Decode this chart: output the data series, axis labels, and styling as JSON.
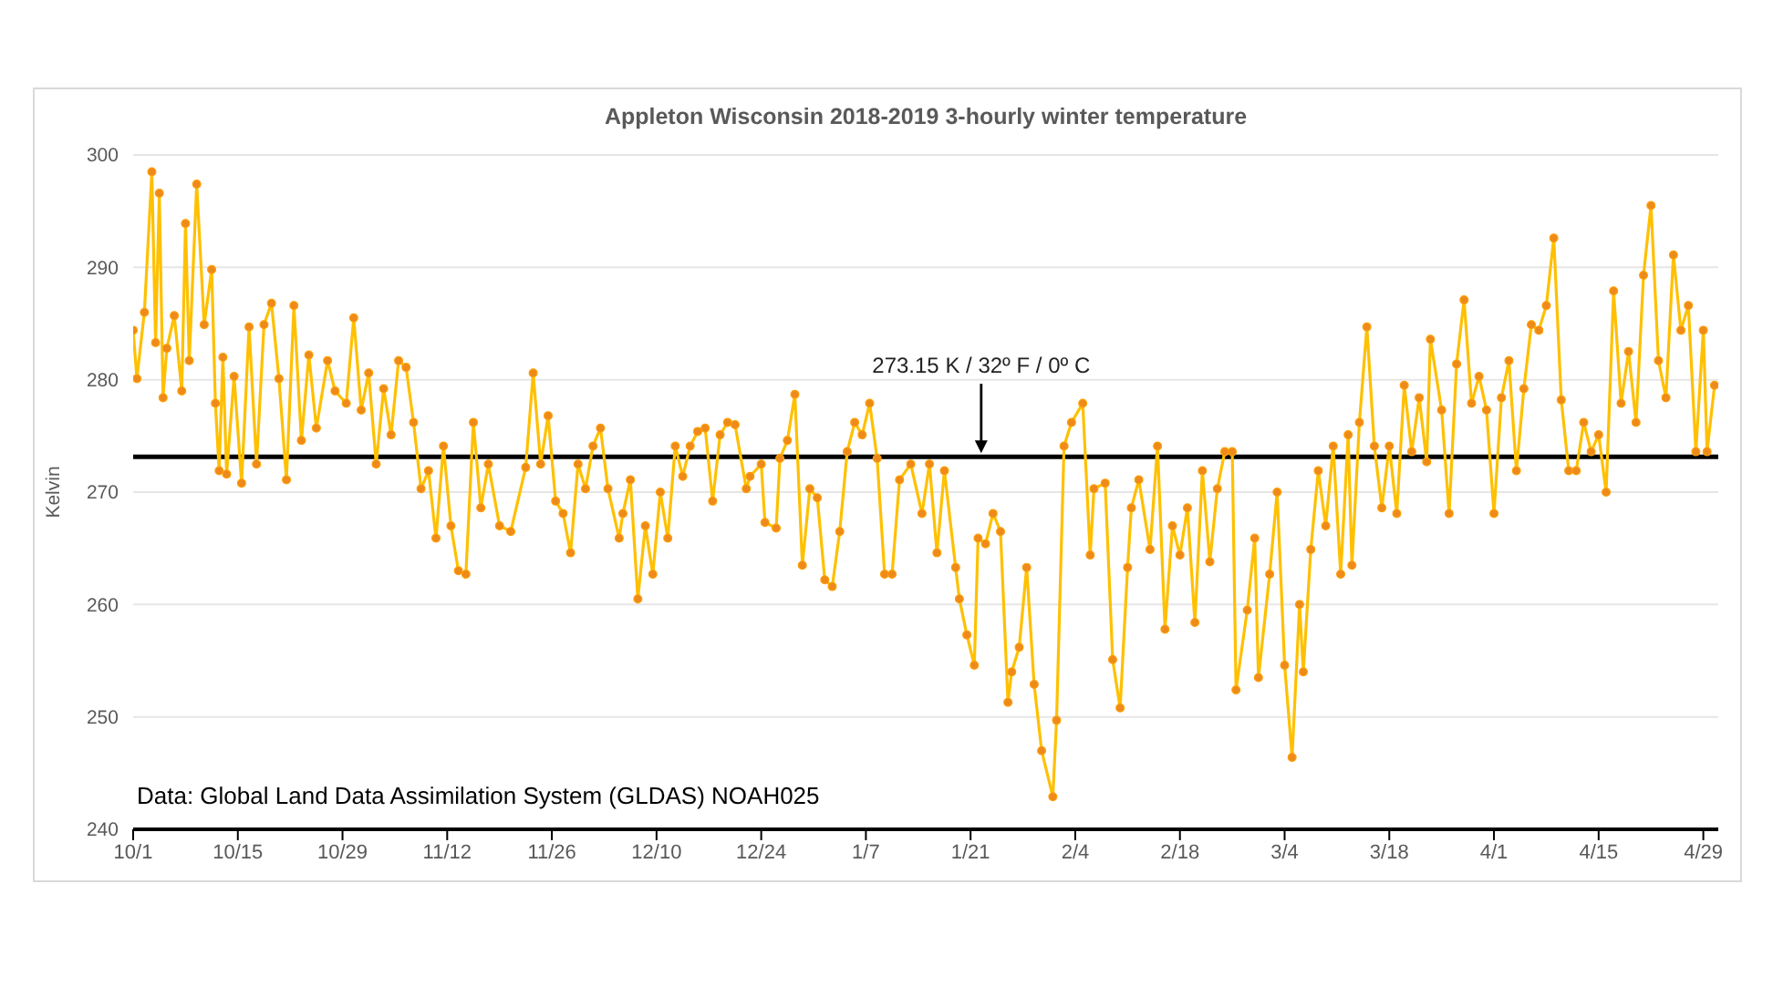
{
  "chart_data": {
    "type": "line",
    "title": "Appleton Wisconsin 2018-2019 3-hourly winter temperature",
    "ylabel": "Kelvin",
    "annotations": [
      "Data: Global Land Data Assimilation System (GLDAS) NOAH025"
    ],
    "ref_lines": [
      {
        "axis": "y",
        "value": 273.15,
        "label": "273.15 K / 32º F / 0º C",
        "color": "#000000"
      }
    ],
    "xlim": [
      "2018-10-01",
      "2019-05-01"
    ],
    "xticks": [
      {
        "value": "2018-10-01",
        "label": "10/1"
      },
      {
        "value": "2018-10-15",
        "label": "10/15"
      },
      {
        "value": "2018-10-29",
        "label": "10/29"
      },
      {
        "value": "2018-11-12",
        "label": "11/12"
      },
      {
        "value": "2018-11-26",
        "label": "11/26"
      },
      {
        "value": "2018-12-10",
        "label": "12/10"
      },
      {
        "value": "2018-12-24",
        "label": "12/24"
      },
      {
        "value": "2019-01-07",
        "label": "1/7"
      },
      {
        "value": "2019-01-21",
        "label": "1/21"
      },
      {
        "value": "2019-02-04",
        "label": "2/4"
      },
      {
        "value": "2019-02-18",
        "label": "2/18"
      },
      {
        "value": "2019-03-04",
        "label": "3/4"
      },
      {
        "value": "2019-03-18",
        "label": "3/18"
      },
      {
        "value": "2019-04-01",
        "label": "4/1"
      },
      {
        "value": "2019-04-15",
        "label": "4/15"
      },
      {
        "value": "2019-04-29",
        "label": "4/29"
      }
    ],
    "ylim": [
      240,
      300
    ],
    "yticks": [
      240,
      250,
      260,
      270,
      280,
      290,
      300
    ],
    "grid": "y",
    "legend": false,
    "marker": "circle",
    "line_style": "solid",
    "x": [
      "2018-10-01T00:00",
      "2018-10-01T12:00",
      "2018-10-02T12:00",
      "2018-10-03T12:00",
      "2018-10-04T00:00",
      "2018-10-04T12:00",
      "2018-10-05T00:00",
      "2018-10-05T12:00",
      "2018-10-06T12:00",
      "2018-10-07T12:00",
      "2018-10-08T00:00",
      "2018-10-08T12:00",
      "2018-10-09T12:00",
      "2018-10-10T12:00",
      "2018-10-11T12:00",
      "2018-10-12T00:00",
      "2018-10-12T12:00",
      "2018-10-13T00:00",
      "2018-10-13T12:00",
      "2018-10-14T12:00",
      "2018-10-15T12:00",
      "2018-10-16T12:00",
      "2018-10-17T12:00",
      "2018-10-18T12:00",
      "2018-10-19T12:00",
      "2018-10-20T12:00",
      "2018-10-21T12:00",
      "2018-10-22T12:00",
      "2018-10-23T12:00",
      "2018-10-24T12:00",
      "2018-10-25T12:00",
      "2018-10-27T00:00",
      "2018-10-28T00:00",
      "2018-10-29T12:00",
      "2018-10-30T12:00",
      "2018-10-31T12:00",
      "2018-11-01T12:00",
      "2018-11-02T12:00",
      "2018-11-03T12:00",
      "2018-11-04T12:00",
      "2018-11-05T12:00",
      "2018-11-06T12:00",
      "2018-11-07T12:00",
      "2018-11-08T12:00",
      "2018-11-09T12:00",
      "2018-11-10T12:00",
      "2018-11-11T12:00",
      "2018-11-12T12:00",
      "2018-11-13T12:00",
      "2018-11-14T12:00",
      "2018-11-15T12:00",
      "2018-11-16T12:00",
      "2018-11-17T12:00",
      "2018-11-19T00:00",
      "2018-11-20T12:00",
      "2018-11-22T12:00",
      "2018-11-23T12:00",
      "2018-11-24T12:00",
      "2018-11-25T12:00",
      "2018-11-26T12:00",
      "2018-11-27T12:00",
      "2018-11-28T12:00",
      "2018-11-29T12:00",
      "2018-11-30T12:00",
      "2018-12-01T12:00",
      "2018-12-02T12:00",
      "2018-12-03T12:00",
      "2018-12-05T00:00",
      "2018-12-05T12:00",
      "2018-12-06T12:00",
      "2018-12-07T12:00",
      "2018-12-08T12:00",
      "2018-12-09T12:00",
      "2018-12-10T12:00",
      "2018-12-11T12:00",
      "2018-12-12T12:00",
      "2018-12-13T12:00",
      "2018-12-14T12:00",
      "2018-12-15T12:00",
      "2018-12-16T12:00",
      "2018-12-17T12:00",
      "2018-12-18T12:00",
      "2018-12-19T12:00",
      "2018-12-20T12:00",
      "2018-12-22T00:00",
      "2018-12-22T12:00",
      "2018-12-24T00:00",
      "2018-12-24T12:00",
      "2018-12-26T00:00",
      "2018-12-26T12:00",
      "2018-12-27T12:00",
      "2018-12-28T12:00",
      "2018-12-29T12:00",
      "2018-12-30T12:00",
      "2018-12-31T12:00",
      "2019-01-01T12:00",
      "2019-01-02T12:00",
      "2019-01-03T12:00",
      "2019-01-04T12:00",
      "2019-01-05T12:00",
      "2019-01-06T12:00",
      "2019-01-07T12:00",
      "2019-01-08T12:00",
      "2019-01-09T12:00",
      "2019-01-10T12:00",
      "2019-01-11T12:00",
      "2019-01-13T00:00",
      "2019-01-14T12:00",
      "2019-01-15T12:00",
      "2019-01-16T12:00",
      "2019-01-17T12:00",
      "2019-01-19T00:00",
      "2019-01-19T12:00",
      "2019-01-20T12:00",
      "2019-01-21T12:00",
      "2019-01-22T00:00",
      "2019-01-23T00:00",
      "2019-01-24T00:00",
      "2019-01-25T00:00",
      "2019-01-26T00:00",
      "2019-01-26T12:00",
      "2019-01-27T12:00",
      "2019-01-28T12:00",
      "2019-01-29T12:00",
      "2019-01-30T12:00",
      "2019-02-01T00:00",
      "2019-02-01T12:00",
      "2019-02-02T12:00",
      "2019-02-03T12:00",
      "2019-02-05T00:00",
      "2019-02-06T00:00",
      "2019-02-06T12:00",
      "2019-02-08T00:00",
      "2019-02-09T00:00",
      "2019-02-10T00:00",
      "2019-02-11T00:00",
      "2019-02-11T12:00",
      "2019-02-12T12:00",
      "2019-02-14T00:00",
      "2019-02-15T00:00",
      "2019-02-16T00:00",
      "2019-02-17T00:00",
      "2019-02-18T00:00",
      "2019-02-19T00:00",
      "2019-02-20T00:00",
      "2019-02-21T00:00",
      "2019-02-22T00:00",
      "2019-02-23T00:00",
      "2019-02-24T00:00",
      "2019-02-25T00:00",
      "2019-02-25T12:00",
      "2019-02-27T00:00",
      "2019-02-28T00:00",
      "2019-02-28T12:00",
      "2019-03-02T00:00",
      "2019-03-03T00:00",
      "2019-03-04T00:00",
      "2019-03-05T00:00",
      "2019-03-06T00:00",
      "2019-03-06T12:00",
      "2019-03-07T12:00",
      "2019-03-08T12:00",
      "2019-03-09T12:00",
      "2019-03-10T12:00",
      "2019-03-11T12:00",
      "2019-03-12T12:00",
      "2019-03-13T00:00",
      "2019-03-14T00:00",
      "2019-03-15T00:00",
      "2019-03-16T00:00",
      "2019-03-17T00:00",
      "2019-03-18T00:00",
      "2019-03-19T00:00",
      "2019-03-20T00:00",
      "2019-03-21T00:00",
      "2019-03-22T00:00",
      "2019-03-23T00:00",
      "2019-03-23T12:00",
      "2019-03-25T00:00",
      "2019-03-26T00:00",
      "2019-03-27T00:00",
      "2019-03-28T00:00",
      "2019-03-29T00:00",
      "2019-03-30T00:00",
      "2019-03-31T00:00",
      "2019-04-01T00:00",
      "2019-04-02T00:00",
      "2019-04-03T00:00",
      "2019-04-04T00:00",
      "2019-04-05T00:00",
      "2019-04-06T00:00",
      "2019-04-07T00:00",
      "2019-04-08T00:00",
      "2019-04-09T00:00",
      "2019-04-10T00:00",
      "2019-04-11T00:00",
      "2019-04-12T00:00",
      "2019-04-13T00:00",
      "2019-04-14T00:00",
      "2019-04-15T00:00",
      "2019-04-16T00:00",
      "2019-04-17T00:00",
      "2019-04-18T00:00",
      "2019-04-19T00:00",
      "2019-04-20T00:00",
      "2019-04-21T00:00",
      "2019-04-22T00:00",
      "2019-04-23T00:00",
      "2019-04-24T00:00",
      "2019-04-25T00:00",
      "2019-04-26T00:00",
      "2019-04-27T00:00",
      "2019-04-28T00:00",
      "2019-04-29T00:00",
      "2019-04-29T12:00",
      "2019-04-30T12:00"
    ],
    "series": [
      {
        "color": "#ffc000",
        "values": [
          284.4,
          280.1,
          286.0,
          298.5,
          283.3,
          296.6,
          278.4,
          282.8,
          285.7,
          279.0,
          293.9,
          281.7,
          297.4,
          284.9,
          289.8,
          277.9,
          271.9,
          282.0,
          271.6,
          280.3,
          270.8,
          284.7,
          272.5,
          284.9,
          286.8,
          280.1,
          271.1,
          286.6,
          274.6,
          282.2,
          275.7,
          281.7,
          279.0,
          277.9,
          285.5,
          277.3,
          280.6,
          272.5,
          279.2,
          275.1,
          281.7,
          281.1,
          276.2,
          270.3,
          271.9,
          265.9,
          274.1,
          267.0,
          263.0,
          262.7,
          276.2,
          268.6,
          272.5,
          267.0,
          266.5,
          272.2,
          280.6,
          272.5,
          276.8,
          269.2,
          268.1,
          264.6,
          272.5,
          270.3,
          274.1,
          275.7,
          270.3,
          265.9,
          268.1,
          271.1,
          260.5,
          267.0,
          262.7,
          270.0,
          265.9,
          274.1,
          271.4,
          274.1,
          275.4,
          275.7,
          269.2,
          275.1,
          276.2,
          276.0,
          270.3,
          271.4,
          272.5,
          267.3,
          266.8,
          273.0,
          274.6,
          278.7,
          263.5,
          270.3,
          269.5,
          262.2,
          261.6,
          266.5,
          273.6,
          276.2,
          275.1,
          277.9,
          273.0,
          262.7,
          262.7,
          271.1,
          272.5,
          268.1,
          272.5,
          264.6,
          271.9,
          263.3,
          260.5,
          257.3,
          254.6,
          265.9,
          265.4,
          268.1,
          266.5,
          251.3,
          254.0,
          256.2,
          263.3,
          252.9,
          247.0,
          242.9,
          249.7,
          274.1,
          276.2,
          277.9,
          264.4,
          270.3,
          270.8,
          255.1,
          250.8,
          263.3,
          268.6,
          271.1,
          264.9,
          274.1,
          257.8,
          267.0,
          264.4,
          268.6,
          258.4,
          271.9,
          263.8,
          270.3,
          273.6,
          273.6,
          252.4,
          259.5,
          265.9,
          253.5,
          262.7,
          270.0,
          254.6,
          246.4,
          260.0,
          254.0,
          264.9,
          271.9,
          267.0,
          274.1,
          262.7,
          275.1,
          263.5,
          276.2,
          284.7,
          274.1,
          268.6,
          274.1,
          268.1,
          279.5,
          273.6,
          278.4,
          272.7,
          283.6,
          277.3,
          268.1,
          281.4,
          287.1,
          277.9,
          280.3,
          277.3,
          268.1,
          278.4,
          281.7,
          271.9,
          279.2,
          284.9,
          284.4,
          286.6,
          292.6,
          278.2,
          271.9,
          271.9,
          276.2,
          273.6,
          275.1,
          270.0,
          287.9,
          277.9,
          282.5,
          276.2,
          289.3,
          295.5,
          281.7,
          278.4,
          291.1,
          284.4,
          286.6,
          273.6,
          284.4,
          273.6,
          279.5
        ]
      }
    ]
  }
}
